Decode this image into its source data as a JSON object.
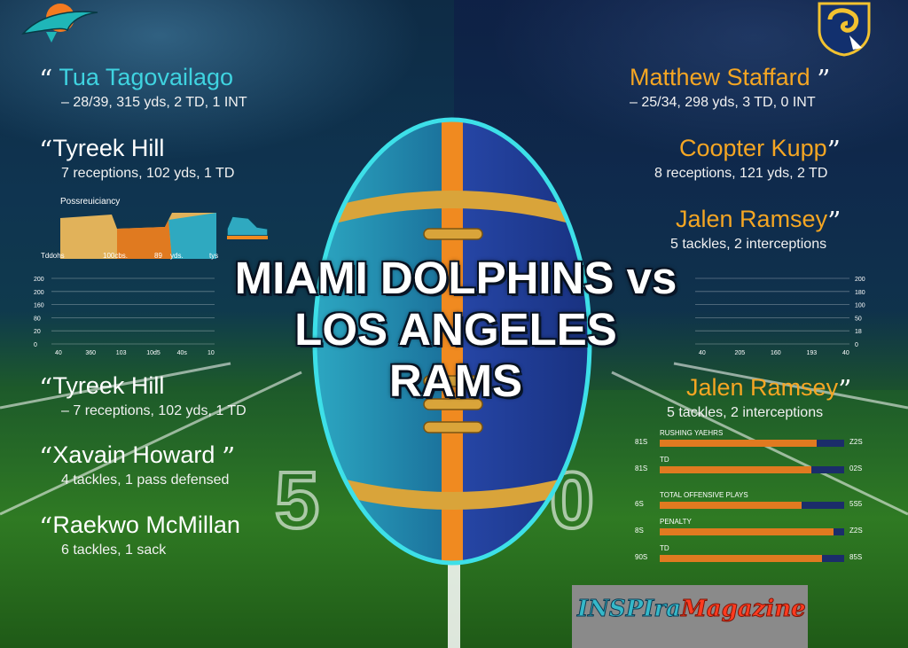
{
  "headline": {
    "line1": "MIAMI DOLPHINS vs",
    "line2": "LOS ANGELES RAMS"
  },
  "left_quotes": [
    {
      "name": "Tua Tagovailago",
      "stats": "– 28/39, 315 yds, 2 TD, 1 INT",
      "name_color": "#3fd3e0"
    },
    {
      "name": "Tyreek Hill",
      "stats": "7 receptions, 102 yds, 1 TD"
    },
    {
      "name": "Tyreek Hill",
      "stats": "– 7 receptions, 102 yds, 1 TD"
    },
    {
      "name": "Xavain Howard",
      "stats": "4 tackles, 1 pass defensed"
    },
    {
      "name": "Raekwo McMillan",
      "stats": "6 tackles, 1 sack"
    }
  ],
  "right_quotes": [
    {
      "name": "Matthew Staffard",
      "stats": "– 25/34, 298 yds, 3 TD, 0 INT",
      "name_color": "#f5a623"
    },
    {
      "name": "Coopter Kupp",
      "stats": "8 receptions, 121 yds, 2 TD",
      "name_color": "#f5a623"
    },
    {
      "name": "Jalen Ramsey",
      "stats": "5 tackles, 2 interceptions",
      "name_color": "#f5a623"
    },
    {
      "name": "Jalen Ramsey",
      "stats": "5 tackles, 2 interceptions",
      "name_color": "#f5a623"
    }
  ],
  "left_mini_chart": {
    "title": "Possreuiciancy",
    "labels": [
      "Tddohs",
      "100cbs.",
      "89",
      "yds.",
      "tys"
    ]
  },
  "left_grid_chart": {
    "y_ticks": [
      "0",
      "20",
      "80",
      "160",
      "200",
      "200"
    ],
    "x_ticks": [
      "40",
      "360",
      "103",
      "10d5",
      "40s",
      "10"
    ]
  },
  "right_grid_chart": {
    "y_ticks": [
      "0",
      "18",
      "50",
      "100",
      "180",
      "200"
    ],
    "x_ticks": [
      "40",
      "205",
      "160",
      "193",
      "40"
    ]
  },
  "right_bars": {
    "groups": [
      {
        "title": "RUSHING YAEHRS",
        "rows": [
          {
            "left": "81S",
            "right": "Z2S",
            "fill": 0.85
          },
          {
            "left": "81S",
            "right": "02S",
            "fill": 0.82,
            "title": "TD"
          }
        ]
      },
      {
        "title": "TOTAL OFFENSIVE PLAYS",
        "rows": [
          {
            "left": "6S",
            "right": "5S5",
            "fill": 0.77
          },
          {
            "left": "8S",
            "right": "Z2S",
            "fill": 0.94,
            "title": "PENALTY"
          },
          {
            "left": "90S",
            "right": "85S",
            "fill": 0.88,
            "title": "TD"
          }
        ]
      }
    ],
    "colors": {
      "fill": "#e07a20",
      "track": "#1b2d6a"
    }
  },
  "brand": {
    "part1": "INSPIra",
    "part2": "Magazine"
  },
  "colors": {
    "teal": "#3fd3e0",
    "orange": "#f5a623",
    "navy": "#1b2d6a"
  },
  "icons": [
    "dolphins-logo-icon",
    "rams-logo-icon",
    "sneaker-icon",
    "football-icon"
  ]
}
